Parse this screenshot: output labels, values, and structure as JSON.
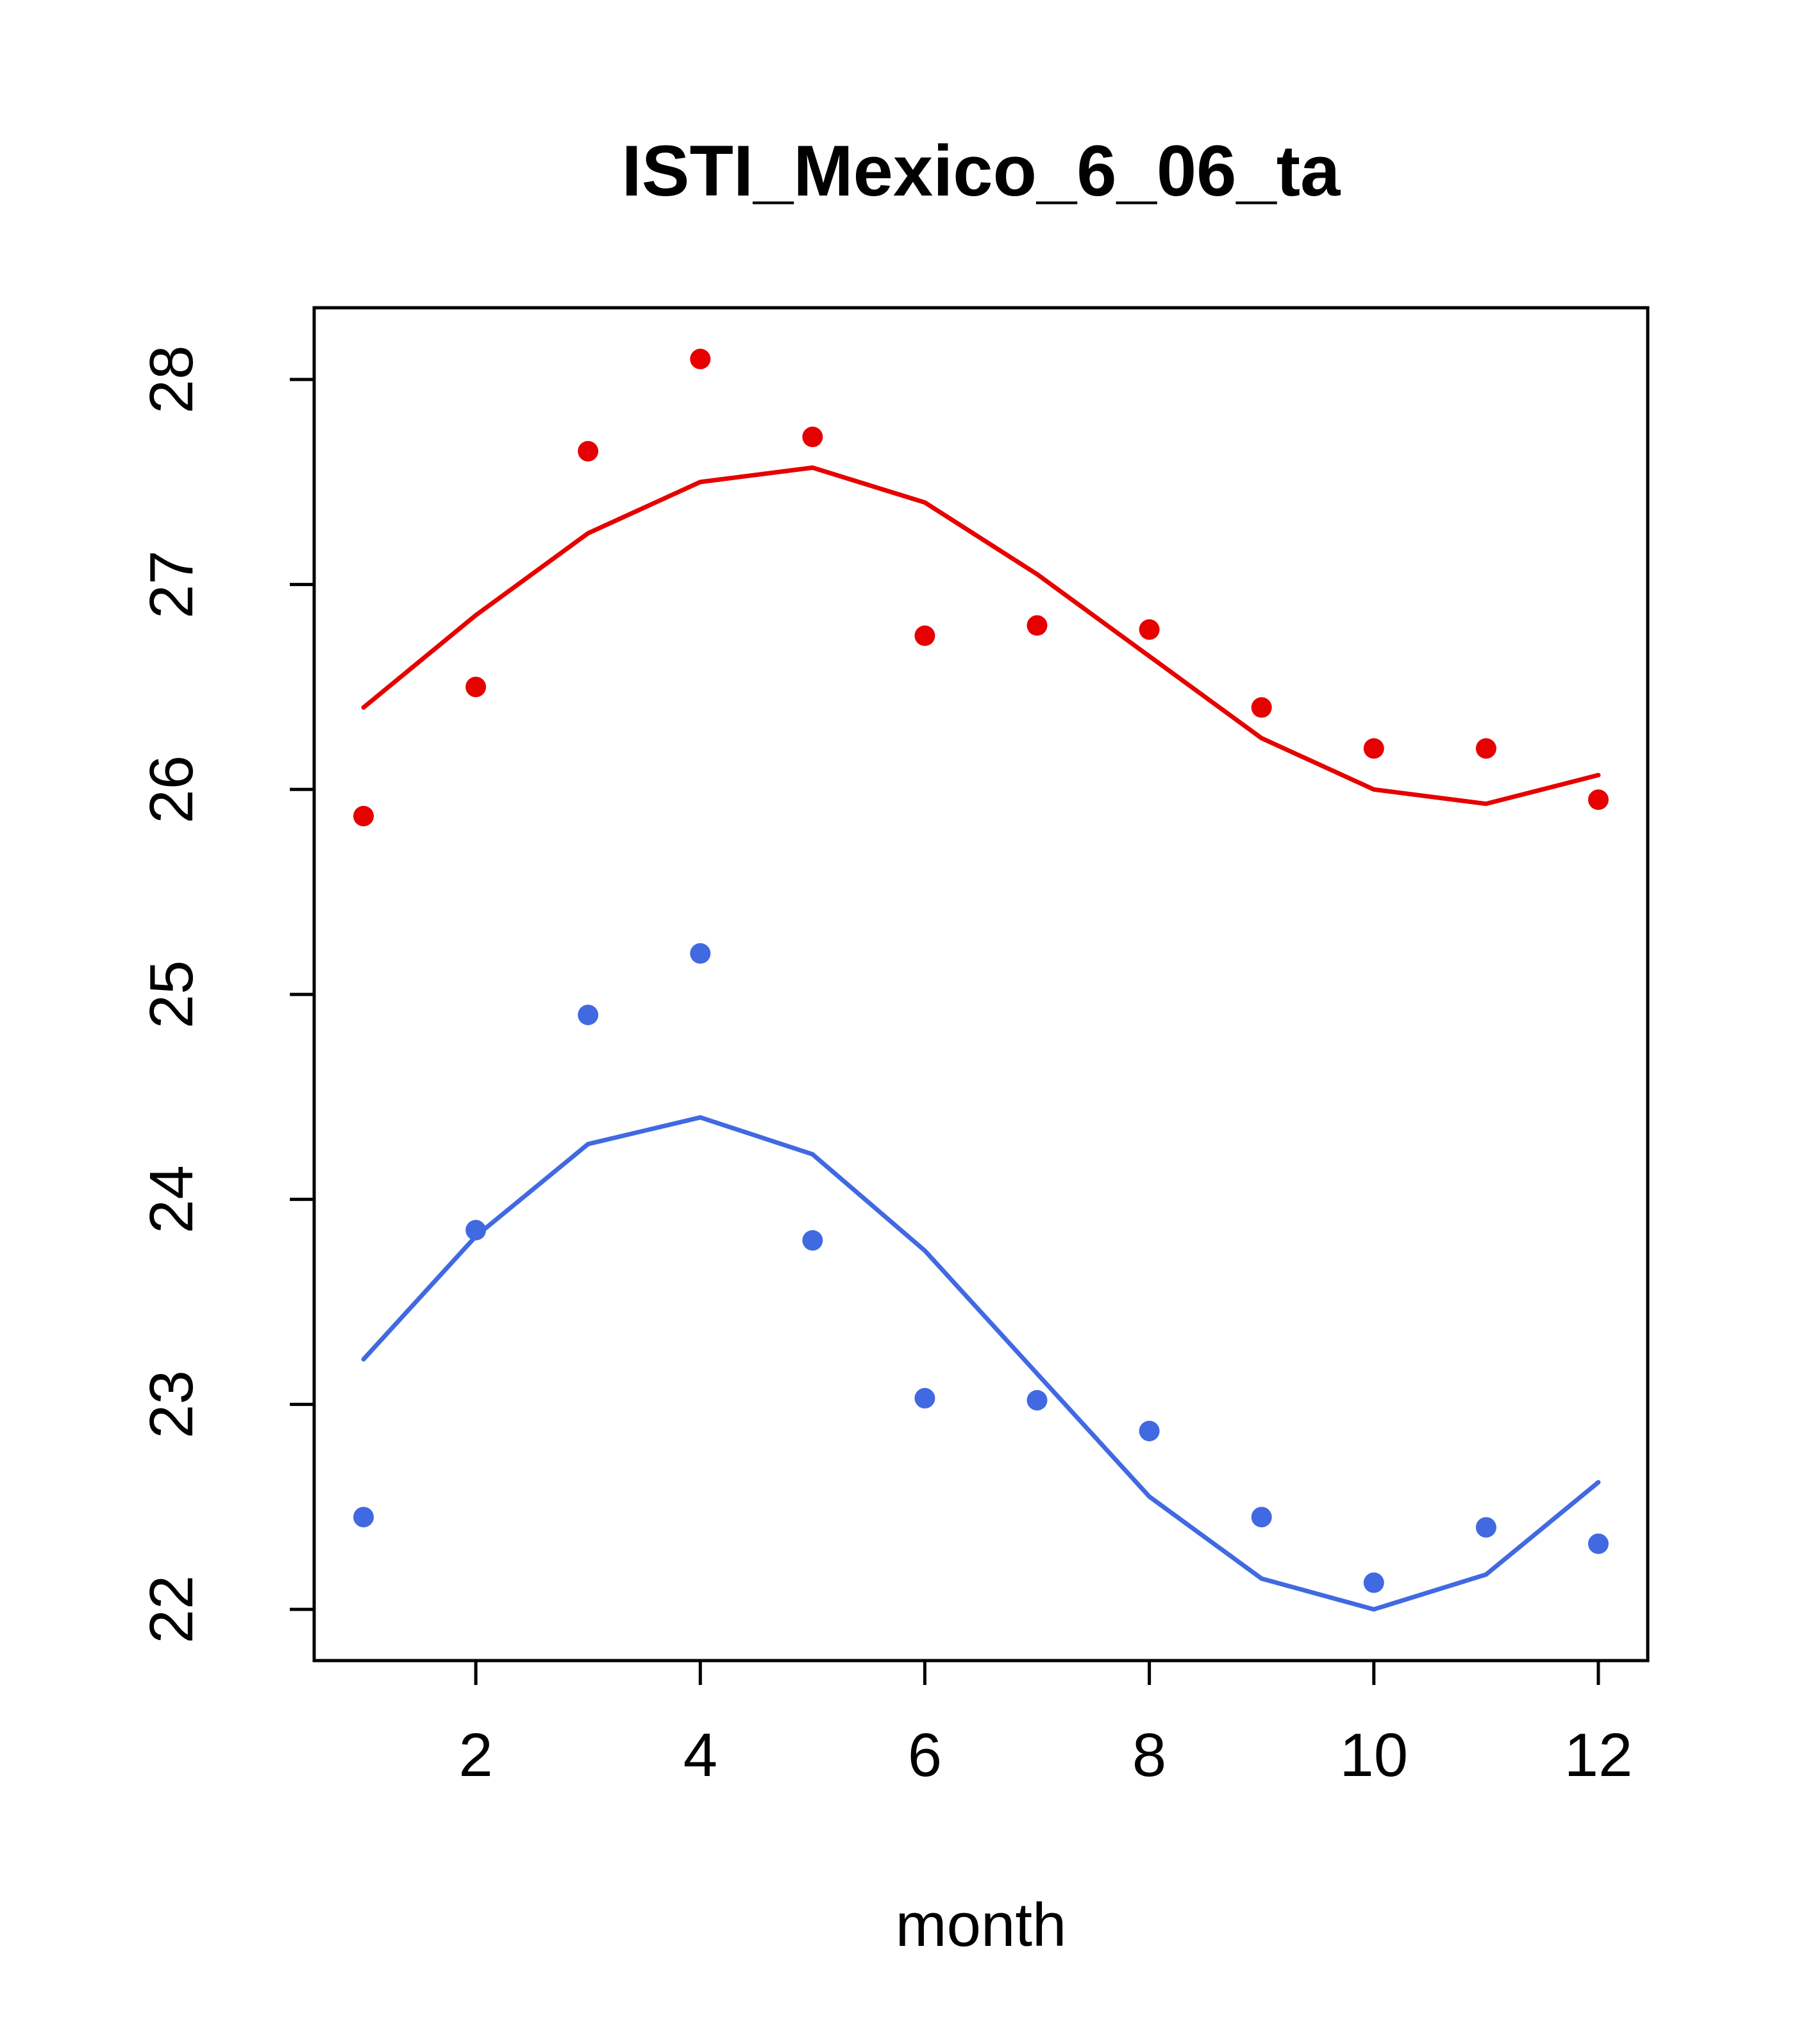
{
  "chart_data": {
    "type": "line",
    "title": "ISTI_Mexico_6_06_ta",
    "xlabel": "month",
    "ylabel": "",
    "x": [
      1,
      2,
      3,
      4,
      5,
      6,
      7,
      8,
      9,
      10,
      11,
      12
    ],
    "x_ticks": [
      2,
      4,
      6,
      8,
      10,
      12
    ],
    "y_ticks": [
      22,
      23,
      24,
      25,
      26,
      27,
      28
    ],
    "xlim": [
      0.56,
      12.44
    ],
    "ylim": [
      21.75,
      28.35
    ],
    "grid": false,
    "legend": "none",
    "colors": {
      "red": "#e60000",
      "blue": "#4169e1"
    },
    "series": [
      {
        "name": "red-points",
        "style": "points",
        "color": "#e60000",
        "values": [
          25.87,
          26.5,
          27.65,
          28.1,
          27.72,
          26.75,
          26.8,
          26.78,
          26.4,
          26.2,
          26.2,
          25.95
        ]
      },
      {
        "name": "red-line",
        "style": "line",
        "color": "#e60000",
        "values": [
          26.4,
          26.85,
          27.25,
          27.5,
          27.57,
          27.4,
          27.05,
          26.65,
          26.25,
          26.0,
          25.93,
          26.07
        ]
      },
      {
        "name": "blue-points",
        "style": "points",
        "color": "#4169e1",
        "values": [
          22.45,
          23.85,
          24.9,
          25.2,
          23.8,
          23.03,
          23.02,
          22.87,
          22.45,
          22.13,
          22.4,
          22.32
        ]
      },
      {
        "name": "blue-line",
        "style": "line",
        "color": "#4169e1",
        "values": [
          23.22,
          23.82,
          24.27,
          24.4,
          24.22,
          23.75,
          23.15,
          22.55,
          22.15,
          22.0,
          22.17,
          22.62
        ]
      }
    ]
  }
}
